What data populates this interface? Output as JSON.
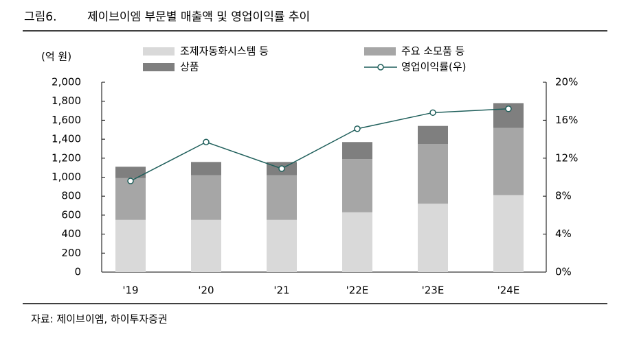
{
  "chart_data": {
    "type": "bar_line",
    "figure_label": "그림6.",
    "title": "제이브이엠 부문별 매출액 및 영업이익률 추이",
    "y_axis_label": "(억 원)",
    "source": "자료: 제이브이엠, 하이투자증권",
    "categories": [
      "'19",
      "'20",
      "'21",
      "'22E",
      "'23E",
      "'24E"
    ],
    "series": [
      {
        "name": "조제자동화시스템 등",
        "color": "#d9d9d9",
        "values": [
          550,
          550,
          550,
          630,
          720,
          810
        ]
      },
      {
        "name": "주요 소모품 등",
        "color": "#a6a6a6",
        "values": [
          440,
          470,
          470,
          560,
          630,
          710
        ]
      },
      {
        "name": "상품",
        "color": "#7f7f7f",
        "values": [
          120,
          140,
          140,
          180,
          190,
          260
        ]
      },
      {
        "name": "영업이익률(우)",
        "color": "#1f5f5b",
        "axis": "y2",
        "values": [
          9.6,
          13.7,
          10.9,
          15.1,
          16.8,
          17.2
        ]
      }
    ],
    "ylim": [
      0,
      2000
    ],
    "yticks": [
      0,
      200,
      400,
      600,
      800,
      {
        "value": 1000,
        "label": "1,000"
      },
      {
        "value": 1200,
        "label": "1,200"
      },
      {
        "value": 1400,
        "label": "1,400"
      },
      {
        "value": 1600,
        "label": "1,600"
      },
      {
        "value": 1800,
        "label": "1,800"
      },
      {
        "value": 2000,
        "label": "2,000"
      }
    ],
    "y2lim": [
      0,
      20
    ],
    "y2ticks": [
      {
        "value": 0,
        "label": "0%"
      },
      {
        "value": 4,
        "label": "4%"
      },
      {
        "value": 8,
        "label": "8%"
      },
      {
        "value": 12,
        "label": "12%"
      },
      {
        "value": 16,
        "label": "16%"
      },
      {
        "value": 20,
        "label": "20%"
      }
    ]
  }
}
